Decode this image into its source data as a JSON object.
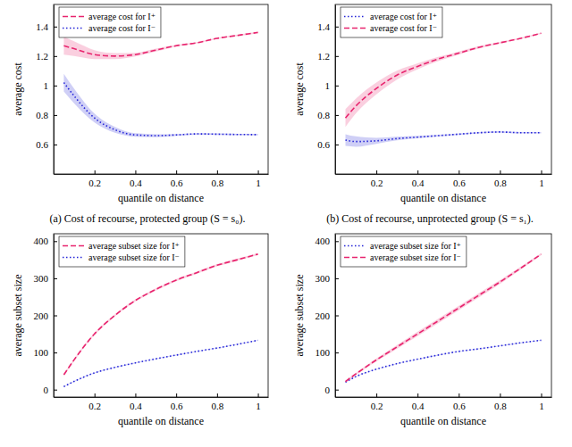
{
  "chart_data": [
    {
      "type": "line",
      "title": "(a) Cost of recourse, protected group (S = s₀).",
      "x_label": "quantile on distance",
      "y_label": "average cost",
      "x": [
        0.05,
        0.1,
        0.2,
        0.3,
        0.4,
        0.5,
        0.6,
        0.7,
        0.8,
        0.9,
        1.0
      ],
      "xlim": [
        0,
        1.05
      ],
      "ylim": [
        0.4,
        1.55
      ],
      "xticks": [
        0.2,
        0.4,
        0.6,
        0.8,
        1
      ],
      "yticks": [
        0.6,
        0.8,
        1,
        1.2,
        1.4
      ],
      "legend": "upper left",
      "series": [
        {
          "name": "average cost for I⁺",
          "color": "#e8246e",
          "line_style": "dashed",
          "values": [
            1.27,
            1.25,
            1.21,
            1.2,
            1.21,
            1.24,
            1.27,
            1.29,
            1.32,
            1.34,
            1.36
          ],
          "error": [
            0.06,
            0.05,
            0.03,
            0.02,
            0.012,
            0.01,
            0.006,
            0.005,
            0.005,
            0.005,
            0.005
          ]
        },
        {
          "name": "average cost for I⁻",
          "color": "#2424d8",
          "line_style": "dotted",
          "values": [
            1.02,
            0.93,
            0.78,
            0.7,
            0.665,
            0.66,
            0.665,
            0.672,
            0.67,
            0.668,
            0.667
          ],
          "error": [
            0.06,
            0.05,
            0.03,
            0.02,
            0.012,
            0.01,
            0.006,
            0.005,
            0.005,
            0.005,
            0.005
          ]
        }
      ]
    },
    {
      "type": "line",
      "title": "(b) Cost of recourse, unprotected group (S = s₁).",
      "x_label": "quantile on distance",
      "y_label": "average cost",
      "x": [
        0.05,
        0.1,
        0.2,
        0.3,
        0.4,
        0.5,
        0.6,
        0.7,
        0.8,
        0.9,
        1.0
      ],
      "xlim": [
        0,
        1.05
      ],
      "ylim": [
        0.4,
        1.55
      ],
      "xticks": [
        0.2,
        0.4,
        0.6,
        0.8,
        1
      ],
      "yticks": [
        0.6,
        0.8,
        1,
        1.2,
        1.4
      ],
      "legend": "upper left",
      "series": [
        {
          "name": "average cost for I⁺",
          "color": "#2424d8",
          "line_style": "dotted",
          "values": [
            0.63,
            0.62,
            0.625,
            0.64,
            0.65,
            0.66,
            0.67,
            0.68,
            0.685,
            0.68,
            0.68
          ],
          "error": [
            0.04,
            0.035,
            0.02,
            0.012,
            0.008,
            0.006,
            0.005,
            0.005,
            0.005,
            0.005,
            0.005
          ]
        },
        {
          "name": "average cost for I⁻",
          "color": "#e8246e",
          "line_style": "dashed",
          "values": [
            0.78,
            0.86,
            0.98,
            1.07,
            1.13,
            1.18,
            1.22,
            1.26,
            1.29,
            1.32,
            1.355
          ],
          "error": [
            0.06,
            0.05,
            0.04,
            0.03,
            0.02,
            0.015,
            0.01,
            0.008,
            0.006,
            0.005,
            0.005
          ]
        }
      ]
    },
    {
      "type": "line",
      "x_label": "quantile on distance",
      "y_label": "average subset size",
      "x": [
        0.05,
        0.1,
        0.2,
        0.3,
        0.4,
        0.5,
        0.6,
        0.7,
        0.8,
        0.9,
        1.0
      ],
      "xlim": [
        0,
        1.05
      ],
      "ylim": [
        -20,
        420
      ],
      "xticks": [
        0.2,
        0.4,
        0.6,
        0.8,
        1
      ],
      "yticks": [
        0,
        100,
        200,
        300,
        400
      ],
      "legend": "upper left",
      "series": [
        {
          "name": "average subset size for I⁺",
          "color": "#e8246e",
          "line_style": "dashed",
          "values": [
            40,
            80,
            150,
            200,
            240,
            270,
            295,
            315,
            335,
            350,
            365
          ],
          "error": [
            3,
            3,
            3,
            3,
            3,
            3,
            3,
            3,
            3,
            3,
            3
          ]
        },
        {
          "name": "average subset size for I⁻",
          "color": "#2424d8",
          "line_style": "dotted",
          "values": [
            8,
            22,
            45,
            60,
            72,
            83,
            93,
            103,
            112,
            122,
            133
          ],
          "error": [
            1,
            1,
            1,
            1,
            1,
            1,
            1,
            1,
            1,
            1,
            1
          ]
        }
      ]
    },
    {
      "type": "line",
      "x_label": "quantile on distance",
      "y_label": "average subset size",
      "x": [
        0.05,
        0.1,
        0.2,
        0.3,
        0.4,
        0.5,
        0.6,
        0.7,
        0.8,
        0.9,
        1.0
      ],
      "xlim": [
        0,
        1.05
      ],
      "ylim": [
        -20,
        420
      ],
      "xticks": [
        0.2,
        0.4,
        0.6,
        0.8,
        1
      ],
      "yticks": [
        0,
        100,
        200,
        300,
        400
      ],
      "legend": "upper left",
      "series": [
        {
          "name": "average subset size for I⁺",
          "color": "#2424d8",
          "line_style": "dotted",
          "values": [
            20,
            35,
            55,
            70,
            82,
            93,
            103,
            110,
            118,
            126,
            133
          ],
          "error": [
            1,
            1,
            1,
            1,
            1,
            1,
            1,
            1,
            1,
            1,
            1
          ]
        },
        {
          "name": "average subset size for I⁻",
          "color": "#e8246e",
          "line_style": "dashed",
          "values": [
            22,
            42,
            80,
            115,
            150,
            185,
            220,
            255,
            290,
            327,
            365
          ],
          "error": [
            2,
            3,
            4,
            5,
            6,
            6,
            6,
            6,
            5,
            4,
            3
          ]
        }
      ]
    }
  ]
}
